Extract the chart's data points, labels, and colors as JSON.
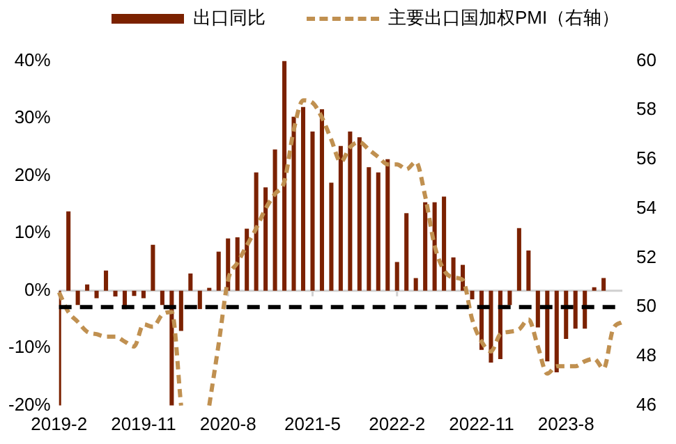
{
  "chart_data": {
    "type": "bar",
    "categories": [
      "2019-2",
      null,
      null,
      null,
      null,
      null,
      null,
      null,
      null,
      "2019-11",
      null,
      null,
      null,
      null,
      null,
      null,
      null,
      null,
      "2020-8",
      null,
      null,
      null,
      null,
      null,
      null,
      null,
      null,
      "2021-5",
      null,
      null,
      null,
      null,
      null,
      null,
      null,
      null,
      "2022-2",
      null,
      null,
      null,
      null,
      null,
      null,
      null,
      null,
      "2022-11",
      null,
      null,
      null,
      null,
      null,
      null,
      null,
      null,
      "2023-8",
      null,
      null,
      null,
      null,
      null,
      null
    ],
    "series": [
      {
        "name": "出口同比",
        "color": "#7b2100",
        "values": [
          -20,
          13.8,
          -2.5,
          1.1,
          -1.3,
          3.5,
          -1.0,
          -3.2,
          -0.9,
          -1.3,
          8.0,
          -2.5,
          -20,
          -7.0,
          3.0,
          -3.2,
          0.5,
          6.8,
          9.1,
          9.3,
          10.8,
          20.6,
          18.0,
          24.6,
          40,
          30.3,
          32.0,
          27.7,
          31.6,
          18.8,
          25.2,
          27.7,
          26.7,
          21.5,
          20.6,
          22.9,
          5.0,
          13.5,
          2.2,
          15.4,
          15.4,
          16.4,
          5.8,
          4.5,
          -1.5,
          -10.3,
          -12.5,
          -11.9,
          -2.5,
          10.9,
          7.0,
          -6.4,
          -12.3,
          -14.2,
          -8.4,
          -6.6,
          -6.6,
          0.6,
          2.2,
          null,
          null
        ]
      },
      {
        "name": "主要出口国加权PMI（右轴）",
        "type": "line",
        "axis": "y2",
        "color": "#c09050",
        "line_style": "dashed",
        "marker": "none",
        "values": [
          50.6,
          49.8,
          49.4,
          49.0,
          48.9,
          48.8,
          48.8,
          48.6,
          48.4,
          49.3,
          49.2,
          49.7,
          49.8,
          46.0,
          null,
          null,
          46.0,
          48.5,
          51.1,
          51.8,
          52.5,
          53.2,
          54.0,
          54.6,
          55.1,
          57.2,
          58.4,
          58.3,
          57.7,
          56.8,
          55.9,
          56.5,
          56.7,
          56.4,
          56.1,
          55.8,
          55.8,
          55.6,
          55.9,
          54.5,
          52.5,
          51.5,
          51.2,
          51.1,
          49.5,
          48.6,
          48.2,
          48.9,
          49.0,
          49.1,
          49.5,
          48.4,
          47.3,
          47.6,
          47.6,
          47.6,
          47.8,
          47.9,
          47.5,
          49.1,
          49.4
        ]
      }
    ],
    "ylim": [
      -20,
      40
    ],
    "yticks": [
      {
        "value": -20,
        "label": "-20%"
      },
      {
        "value": -10,
        "label": "-10%"
      },
      {
        "value": 0,
        "label": "0%"
      },
      {
        "value": 10,
        "label": "10%"
      },
      {
        "value": 20,
        "label": "20%"
      },
      {
        "value": 30,
        "label": "30%"
      },
      {
        "value": 40,
        "label": "40%"
      }
    ],
    "y2lim": [
      46,
      60
    ],
    "y2ticks": [
      46,
      48,
      50,
      52,
      54,
      56,
      58,
      60
    ],
    "ref_lines": [
      {
        "axis": "y2",
        "value": 50,
        "color": "#000000",
        "line_style": "dashed"
      }
    ],
    "grid": false,
    "legend": "top"
  }
}
